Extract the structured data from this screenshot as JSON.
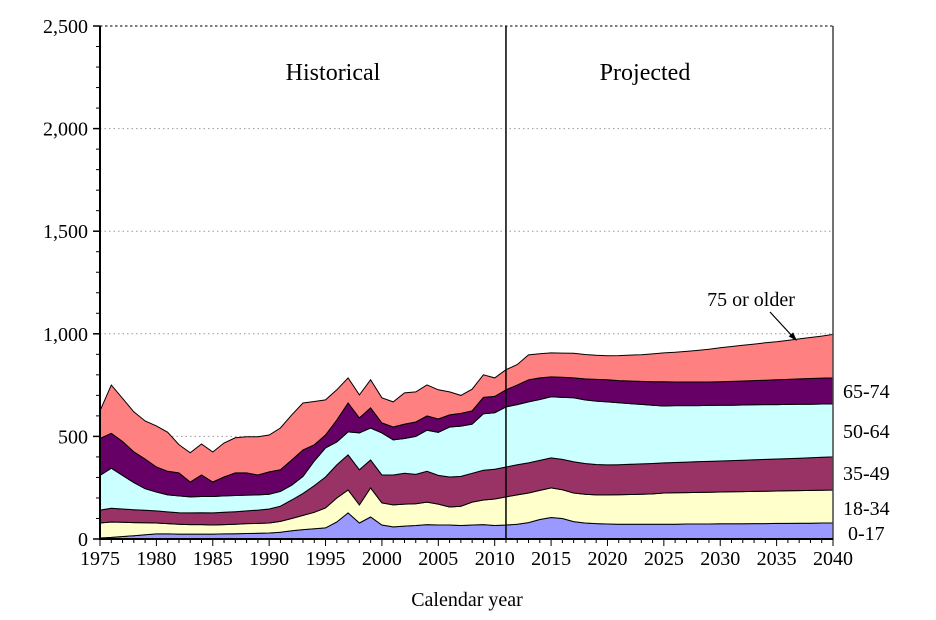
{
  "chart_data": {
    "type": "area",
    "stacked": true,
    "title": "",
    "xlabel": "Calendar year",
    "ylabel": "",
    "xlim": [
      1975,
      2040
    ],
    "ylim": [
      0,
      2500
    ],
    "x_major_step": 5,
    "x_minor_step": 1,
    "y_minor_step": 100,
    "y_major_ticks": [
      0,
      500,
      1000,
      1500,
      2000,
      2500
    ],
    "y_tick_labels": [
      "0",
      "500",
      "1,000",
      "1,500",
      "2,000",
      "2,500"
    ],
    "gridlines": "horizontal-dotted",
    "grid_color": "#999999",
    "border_color": "#444444",
    "outline_color": "#000000",
    "x": [
      1975,
      1976,
      1977,
      1978,
      1979,
      1980,
      1981,
      1982,
      1983,
      1984,
      1985,
      1986,
      1987,
      1988,
      1989,
      1990,
      1991,
      1992,
      1993,
      1994,
      1995,
      1996,
      1997,
      1998,
      1999,
      2000,
      2001,
      2002,
      2003,
      2004,
      2005,
      2006,
      2007,
      2008,
      2009,
      2010,
      2011,
      2012,
      2013,
      2014,
      2015,
      2016,
      2017,
      2018,
      2019,
      2020,
      2021,
      2022,
      2023,
      2024,
      2025,
      2026,
      2027,
      2028,
      2029,
      2030,
      2031,
      2032,
      2033,
      2034,
      2035,
      2036,
      2037,
      2038,
      2039,
      2040
    ],
    "series": [
      {
        "name": "0-17",
        "color": "#9999FF",
        "values": [
          5,
          8,
          12,
          16,
          21,
          25,
          25,
          24,
          24,
          24,
          24,
          25,
          26,
          27,
          28,
          29,
          33,
          40,
          46,
          50,
          54,
          83,
          127,
          78,
          107,
          68,
          59,
          63,
          66,
          70,
          68,
          68,
          66,
          68,
          70,
          66,
          68,
          72,
          80,
          95,
          105,
          100,
          85,
          78,
          75,
          73,
          72,
          72,
          72,
          72,
          72,
          72,
          73,
          73,
          73,
          74,
          74,
          74,
          75,
          75,
          76,
          76,
          77,
          77,
          78,
          78
        ]
      },
      {
        "name": "18-34",
        "color": "#FFFFCC",
        "values": [
          73,
          75,
          70,
          64,
          58,
          53,
          50,
          48,
          46,
          46,
          44,
          45,
          46,
          48,
          48,
          49,
          53,
          60,
          69,
          80,
          97,
          117,
          112,
          88,
          142,
          108,
          107,
          107,
          106,
          110,
          102,
          88,
          94,
          112,
          120,
          129,
          137,
          143,
          144,
          142,
          144,
          140,
          139,
          140,
          140,
          142,
          144,
          145,
          146,
          148,
          152,
          153,
          153,
          154,
          155,
          155,
          156,
          157,
          157,
          158,
          158,
          159,
          159,
          160,
          160,
          161
        ]
      },
      {
        "name": "35-49",
        "color": "#993366",
        "values": [
          63,
          67,
          64,
          63,
          61,
          59,
          57,
          56,
          57,
          58,
          59,
          60,
          61,
          62,
          65,
          68,
          74,
          90,
          107,
          130,
          151,
          161,
          171,
          171,
          136,
          136,
          146,
          150,
          143,
          150,
          140,
          146,
          145,
          140,
          145,
          145,
          146,
          147,
          147,
          146,
          146,
          148,
          152,
          150,
          148,
          146,
          146,
          147,
          148,
          148,
          147,
          148,
          149,
          150,
          150,
          151,
          152,
          153,
          154,
          155,
          156,
          157,
          158,
          159,
          160,
          161
        ]
      },
      {
        "name": "50-64",
        "color": "#CCFFFF",
        "values": [
          169,
          195,
          164,
          132,
          105,
          92,
          83,
          82,
          78,
          79,
          80,
          80,
          79,
          77,
          74,
          72,
          72,
          72,
          83,
          120,
          142,
          112,
          112,
          180,
          156,
          205,
          171,
          170,
          185,
          200,
          210,
          244,
          245,
          240,
          275,
          275,
          293,
          293,
          297,
          297,
          298,
          302,
          312,
          310,
          309,
          307,
          302,
          296,
          290,
          284,
          277,
          277,
          275,
          273,
          273,
          272,
          270,
          269,
          268,
          267,
          265,
          264,
          263,
          261,
          260,
          258
        ]
      },
      {
        "name": "65-74",
        "color": "#660066",
        "values": [
          180,
          170,
          165,
          150,
          145,
          122,
          115,
          112,
          73,
          105,
          71,
          92,
          110,
          108,
          97,
          109,
          105,
          123,
          129,
          79,
          63,
          107,
          141,
          73,
          98,
          49,
          63,
          70,
          70,
          70,
          65,
          59,
          62,
          65,
          80,
          80,
          83,
          95,
          108,
          105,
          97,
          98,
          97,
          102,
          106,
          108,
          108,
          110,
          112,
          114,
          118,
          115,
          115,
          115,
          114,
          114,
          116,
          117,
          118,
          119,
          121,
          122,
          123,
          125,
          126,
          127
        ]
      },
      {
        "name": "75 or older",
        "color": "#FF8080",
        "values": [
          135,
          235,
          210,
          195,
          185,
          200,
          190,
          138,
          142,
          151,
          146,
          166,
          171,
          176,
          186,
          180,
          204,
          220,
          229,
          211,
          171,
          147,
          122,
          112,
          137,
          122,
          122,
          152,
          147,
          151,
          142,
          112,
          88,
          105,
          110,
          90,
          98,
          100,
          121,
          118,
          117,
          118,
          120,
          119,
          117,
          117,
          122,
          126,
          130,
          136,
          141,
          145,
          149,
          154,
          160,
          166,
          170,
          174,
          178,
          182,
          185,
          190,
          195,
          200,
          205,
          212
        ]
      }
    ],
    "annotations": {
      "historical": "Historical",
      "projected": "Projected",
      "divider_year": 2011,
      "right_labels": [
        "65-74",
        "50-64",
        "35-49",
        "18-34",
        "0-17"
      ]
    }
  }
}
